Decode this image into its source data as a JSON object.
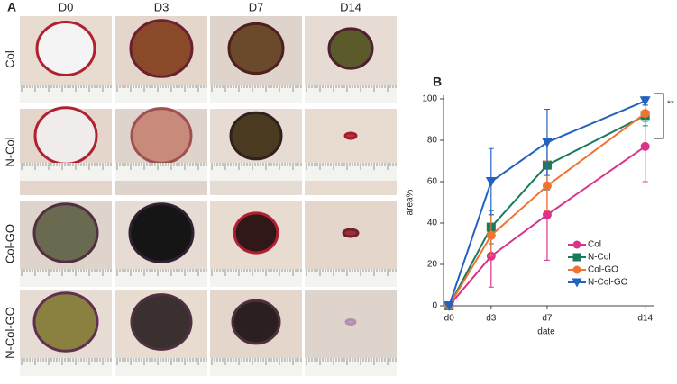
{
  "panel_a": {
    "label": "A",
    "columns": [
      "D0",
      "D3",
      "D7",
      "D14"
    ],
    "rows": [
      "Col",
      "N-Col",
      "Col-GO",
      "N-Col-GO"
    ]
  },
  "chart_data": {
    "type": "line",
    "panel_label": "B",
    "x_label": "date",
    "y_label": "area%",
    "x": [
      0,
      3,
      7,
      14
    ],
    "xlim": [
      -0.4,
      14.6
    ],
    "xticks": [
      {
        "value": 0,
        "label": "d0"
      },
      {
        "value": 3,
        "label": "d3"
      },
      {
        "value": 7,
        "label": "d7"
      },
      {
        "value": 14,
        "label": "d14"
      }
    ],
    "ylim": [
      0,
      100
    ],
    "yticks": [
      0,
      20,
      40,
      60,
      80,
      100
    ],
    "series": [
      {
        "name": "Col",
        "color": "#d9338c",
        "marker": "circle",
        "values": [
          0,
          24,
          44,
          77
        ],
        "errors": [
          0,
          15,
          22,
          17
        ]
      },
      {
        "name": "N-Col",
        "color": "#1b7a5c",
        "marker": "square",
        "values": [
          0,
          38,
          68,
          92
        ],
        "errors": [
          0,
          8,
          12,
          5
        ]
      },
      {
        "name": "Col-GO",
        "color": "#f0742f",
        "marker": "circle",
        "values": [
          0,
          34,
          58,
          93
        ],
        "errors": [
          0,
          10,
          12,
          4
        ]
      },
      {
        "name": "N-Col-GO",
        "color": "#2462c2",
        "marker": "triangle",
        "values": [
          0,
          60,
          79,
          99
        ],
        "errors": [
          0,
          16,
          16,
          2
        ]
      }
    ],
    "annotation": "**"
  }
}
